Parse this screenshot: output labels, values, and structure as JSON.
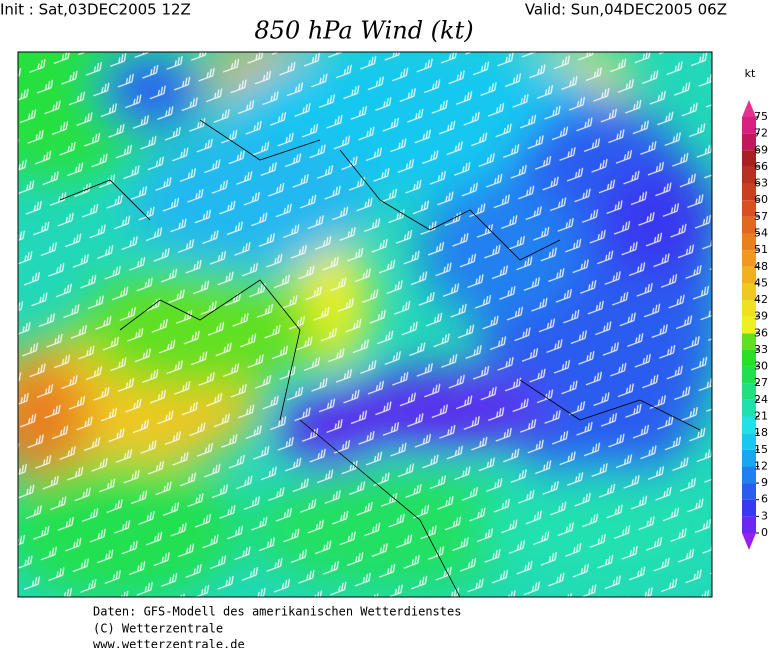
{
  "header": {
    "init": "Init : Sat,03DEC2005 12Z",
    "valid": "Valid: Sun,04DEC2005 06Z",
    "title": "850 hPa Wind (kt)"
  },
  "legend": {
    "unit": "kt",
    "ticks": [
      0,
      3,
      6,
      9,
      12,
      15,
      18,
      21,
      24,
      27,
      30,
      33,
      36,
      39,
      42,
      45,
      48,
      51,
      54,
      57,
      60,
      63,
      66,
      69,
      72,
      75
    ],
    "colors": [
      "#9a1ef0",
      "#6a28f0",
      "#3838f0",
      "#2a5cf0",
      "#2080f0",
      "#18a8f0",
      "#18c8f0",
      "#20e0e8",
      "#20e0b0",
      "#20e080",
      "#20e050",
      "#28e028",
      "#60e020",
      "#f0f020",
      "#f0e020",
      "#f0c820",
      "#f0b020",
      "#f09820",
      "#e88020",
      "#e06820",
      "#d85020",
      "#c84020",
      "#b83020",
      "#a82020",
      "#c01858",
      "#d82080",
      "#e83090"
    ]
  },
  "footer": {
    "lines": [
      "Daten: GFS-Modell des amerikanischen Wetterdienstes",
      "(C) Wetterzentrale",
      "www.wetterzentrale.de"
    ]
  }
}
